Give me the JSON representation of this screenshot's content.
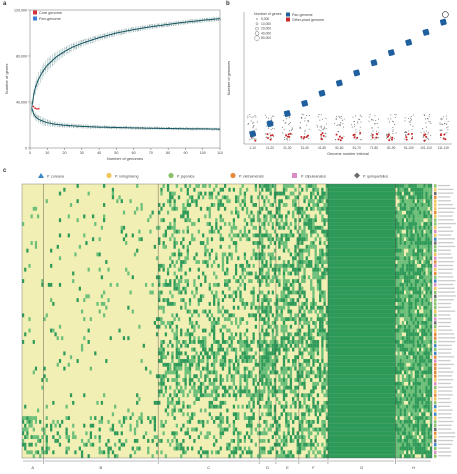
{
  "panels": {
    "a": "a",
    "b": "b",
    "c": "c"
  },
  "chart_data": [
    {
      "type": "line",
      "panel": "a",
      "ylabel": "Number of genes",
      "xlabel": "Number of genomes",
      "ylim": [
        0,
        120000
      ],
      "xlim": [
        0,
        110
      ],
      "yticks": [
        "120,000",
        "80,000",
        "40,000",
        "0"
      ],
      "ytick_values": [
        120000,
        80000,
        40000,
        0
      ],
      "xticks": [
        "0",
        "10",
        "20",
        "30",
        "40",
        "50",
        "60",
        "70",
        "80",
        "90",
        "100",
        "110"
      ],
      "legend": [
        "Core genome",
        "Pan-genome"
      ],
      "legend_colors": [
        "#d7303b",
        "#3b7fd1"
      ],
      "series": [
        {
          "name": "Pan-genome",
          "x": [
            1,
            2,
            3,
            5,
            8,
            10,
            15,
            20,
            25,
            30,
            40,
            50,
            60,
            70,
            80,
            90,
            100,
            110
          ],
          "values": [
            35000,
            45000,
            52000,
            60000,
            68000,
            72000,
            79000,
            84000,
            88000,
            91000,
            96000,
            100000,
            103000,
            105500,
            107500,
            109500,
            111000,
            112500
          ]
        },
        {
          "name": "Core genome",
          "x": [
            1,
            2,
            3,
            5,
            8,
            10,
            15,
            20,
            25,
            30,
            40,
            50,
            60,
            70,
            80,
            90,
            100,
            110
          ],
          "values": [
            35000,
            30000,
            27500,
            25000,
            23000,
            22000,
            20500,
            19800,
            19200,
            18800,
            18200,
            17800,
            17500,
            17200,
            17000,
            16800,
            16600,
            16400
          ]
        }
      ]
    },
    {
      "type": "scatter",
      "panel": "b",
      "ylabel": "Number of genomes",
      "xlabel": "Genome number interval",
      "legend_title": "Number of genes",
      "legend_sizes": [
        "5,000",
        "10,000",
        "20,000",
        "40,000",
        "80,000"
      ],
      "legend": [
        "Pan-genome",
        "Other-plant genome"
      ],
      "legend_colors": [
        "#1f5f9e",
        "#c62828"
      ],
      "categories": [
        "1-10",
        "11-20",
        "21-30",
        "31-40",
        "41-50",
        "51-60",
        "61-70",
        "71-80",
        "81-90",
        "91-100",
        "101-110",
        "111-119"
      ],
      "series": [
        {
          "name": "Pan-genome",
          "values": [
            2,
            4,
            6,
            8,
            10,
            12,
            14,
            16,
            18,
            20,
            22,
            24
          ]
        }
      ]
    },
    {
      "type": "heatmap",
      "panel": "c",
      "legend": [
        "P. coreana",
        "P. notoginseng",
        "P. japonica",
        "P. vietnamensis",
        "P. stipuleanatus",
        "P. quinquefolius"
      ],
      "legend_colors": [
        "#3b86c4",
        "#f2c65c",
        "#8ac16a",
        "#e58a3a",
        "#d98bc4",
        "#6b6b6b"
      ],
      "groups": [
        "A",
        "B",
        "C",
        "D",
        "E",
        "F",
        "G",
        "H"
      ],
      "group_widths": [
        14,
        75,
        66,
        11,
        15,
        19,
        44,
        24
      ]
    }
  ]
}
